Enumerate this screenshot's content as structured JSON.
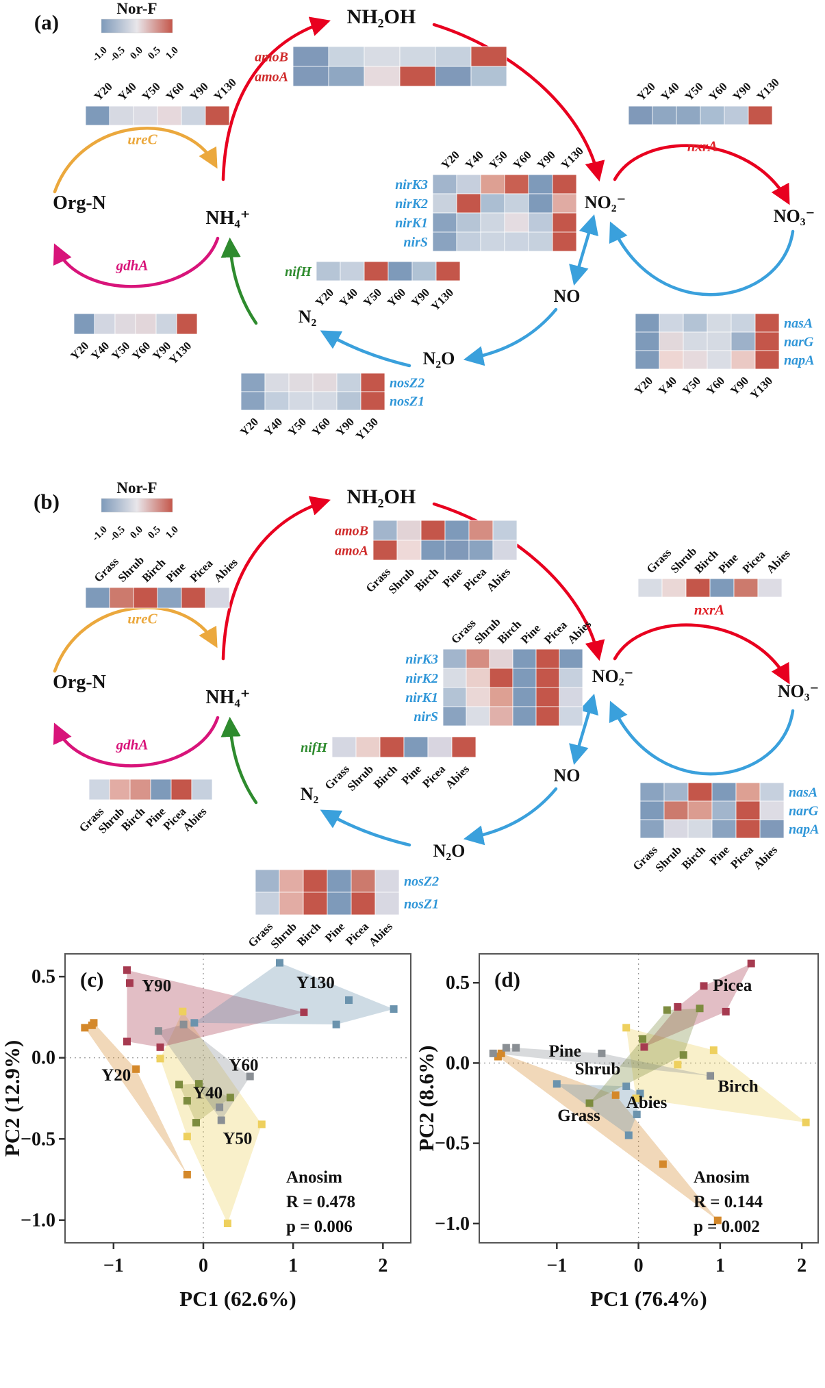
{
  "legend": {
    "title": "Nor-F",
    "ticks": [
      "-1.0",
      "-0.5",
      "0.0",
      "0.5",
      "1.0"
    ],
    "gradient": [
      "#7e9aba",
      "#e8e6ea",
      "#c4564a"
    ]
  },
  "panel_a": {
    "label": "(a)",
    "col_labels": [
      "Y20",
      "Y40",
      "Y50",
      "Y60",
      "Y90",
      "Y130"
    ],
    "nodes": {
      "nh2oh": "NH₂OH",
      "nh4": "NH₄⁺",
      "orgn": "Org-N",
      "no2": "NO₂⁻",
      "no3": "NO₃⁻",
      "no": "NO",
      "n2o": "N₂O",
      "n2": "N₂"
    },
    "genes": {
      "ureC": {
        "label": "ureC",
        "color": "#eba83d"
      },
      "gdhA": {
        "label": "gdhA",
        "color": "#d8147a"
      },
      "nxrA": {
        "label": "nxrA",
        "color": "#e01f26"
      }
    },
    "heatmaps": {
      "ureC": {
        "rows": [
          {
            "label": "",
            "colors": [
              "#7e9aba",
              "#d6d9e2",
              "#dcdce4",
              "#e6d8dc",
              "#ccd4e0",
              "#c4564a"
            ]
          }
        ]
      },
      "amo": {
        "label_color": "#cf2b2b",
        "rows": [
          {
            "label": "amoB",
            "colors": [
              "#8099b9",
              "#c9d4e0",
              "#d8dce4",
              "#d0d8e2",
              "#c6d1de",
              "#c4564a"
            ]
          },
          {
            "label": "amoA",
            "colors": [
              "#8099b9",
              "#8fa7c2",
              "#e6dadd",
              "#c4564a",
              "#8099b9",
              "#b0c2d4"
            ]
          }
        ]
      },
      "nxrA": {
        "rows": [
          {
            "label": "",
            "colors": [
              "#8099b9",
              "#8fa7c2",
              "#8fa7c2",
              "#a9bdd2",
              "#bcc9da",
              "#c4564a"
            ]
          }
        ]
      },
      "nir": {
        "label_color": "#2f96d8",
        "rows": [
          {
            "label": "nirK3",
            "colors": [
              "#a2b5cc",
              "#c6cfdd",
              "#dda093",
              "#c96052",
              "#7e9aba",
              "#c4564a"
            ]
          },
          {
            "label": "nirK2",
            "colors": [
              "#c9d2de",
              "#c4564a",
              "#abbed2",
              "#c6d1de",
              "#7e9aba",
              "#e0aba3"
            ]
          },
          {
            "label": "nirK1",
            "colors": [
              "#8aa3c0",
              "#b6c5d6",
              "#ced6e1",
              "#e4dce1",
              "#bcc9da",
              "#c4564a"
            ]
          },
          {
            "label": "nirS",
            "colors": [
              "#8aa3c0",
              "#c2cedd",
              "#ccd5e1",
              "#cbd4e1",
              "#c6d1de",
              "#c4564a"
            ]
          }
        ]
      },
      "nifH": {
        "label_color": "#2e8b2e",
        "rows": [
          {
            "label": "nifH",
            "colors": [
              "#b6c5d6",
              "#c6d0de",
              "#c4564a",
              "#7e9aba",
              "#b0c2d4",
              "#c4564a"
            ]
          }
        ]
      },
      "gdhA": {
        "rows": [
          {
            "label": "",
            "colors": [
              "#7e9aba",
              "#d2d6e1",
              "#dfd9df",
              "#e2d6da",
              "#ccd4e0",
              "#c4564a"
            ]
          }
        ]
      },
      "nos": {
        "label_color": "#2f96d8",
        "rows": [
          {
            "label": "nosZ2",
            "colors": [
              "#8aa3c0",
              "#d9dbe3",
              "#e0dbe0",
              "#e2d9dd",
              "#c6d1de",
              "#c4564a"
            ]
          },
          {
            "label": "nosZ1",
            "colors": [
              "#8aa3c0",
              "#c2cedd",
              "#d3d9e3",
              "#d3d9e3",
              "#b6c5d6",
              "#c4564a"
            ]
          }
        ]
      },
      "nas": {
        "label_color": "#2f96d8",
        "rows": [
          {
            "label": "nasA",
            "colors": [
              "#7e9aba",
              "#ced6e2",
              "#b3c3d5",
              "#d4dae3",
              "#c9d3e0",
              "#c4564a"
            ]
          },
          {
            "label": "narG",
            "colors": [
              "#7e9aba",
              "#e2d8db",
              "#d5dae3",
              "#d5dae3",
              "#9db1c9",
              "#c4564a"
            ]
          },
          {
            "label": "napA",
            "colors": [
              "#7e9aba",
              "#eed6d3",
              "#e6dadd",
              "#dadde5",
              "#eac9c4",
              "#c4564a"
            ]
          }
        ]
      }
    }
  },
  "panel_b": {
    "label": "(b)",
    "col_labels": [
      "Grass",
      "Shrub",
      "Birch",
      "Pine",
      "Picea",
      "Abies"
    ],
    "nodes": {
      "nh2oh": "NH₂OH",
      "nh4": "NH₄⁺",
      "orgn": "Org-N",
      "no2": "NO₂⁻",
      "no3": "NO₃⁻",
      "no": "NO",
      "n2o": "N₂O",
      "n2": "N₂"
    },
    "genes": {
      "ureC": {
        "label": "ureC",
        "color": "#eba83d"
      },
      "gdhA": {
        "label": "gdhA",
        "color": "#d8147a"
      },
      "nxrA": {
        "label": "nxrA",
        "color": "#e01f26"
      }
    },
    "heatmaps": {
      "ureC": {
        "rows": [
          {
            "label": "",
            "colors": [
              "#7e9aba",
              "#cc7a6d",
              "#c4564a",
              "#8aa3c0",
              "#c4564a",
              "#d5d7e2"
            ]
          }
        ]
      },
      "amo": {
        "label_color": "#cf2b2b",
        "rows": [
          {
            "label": "amoB",
            "colors": [
              "#a2b5cc",
              "#e2d3d6",
              "#c4564a",
              "#7e9aba",
              "#d58d82",
              "#c2cedd"
            ]
          },
          {
            "label": "amoA",
            "colors": [
              "#c4564a",
              "#eed9d8",
              "#7e9aba",
              "#8099b9",
              "#8aa3c0",
              "#d5d7e2"
            ]
          }
        ]
      },
      "nxrA": {
        "rows": [
          {
            "label": "",
            "colors": [
              "#d8dce4",
              "#ead7d6",
              "#c4564a",
              "#7e9aba",
              "#cc7a6d",
              "#dddce4"
            ]
          }
        ]
      },
      "nir": {
        "label_color": "#2f96d8",
        "rows": [
          {
            "label": "nirK3",
            "colors": [
              "#a2b5cc",
              "#d58d82",
              "#e2d3d6",
              "#7e9aba",
              "#c4564a",
              "#7e9aba"
            ]
          },
          {
            "label": "nirK2",
            "colors": [
              "#d8dce4",
              "#eacfcb",
              "#c4564a",
              "#7e9aba",
              "#c4564a",
              "#c6d0de"
            ]
          },
          {
            "label": "nirK1",
            "colors": [
              "#b3c3d5",
              "#ead7d6",
              "#dda093",
              "#7e9aba",
              "#c4564a",
              "#d5d7e2"
            ]
          },
          {
            "label": "nirS",
            "colors": [
              "#8aa3c0",
              "#dadde5",
              "#e0b0aa",
              "#7e9aba",
              "#c4564a",
              "#ced6e2"
            ]
          }
        ]
      },
      "nifH": {
        "label_color": "#2e8b2e",
        "rows": [
          {
            "label": "nifH",
            "colors": [
              "#d5d7e2",
              "#eacfcb",
              "#c4564a",
              "#7e9aba",
              "#d8d5e0",
              "#c4564a"
            ]
          }
        ]
      },
      "gdhA": {
        "rows": [
          {
            "label": "",
            "colors": [
              "#ced6e2",
              "#e2aca4",
              "#d8948a",
              "#7e9aba",
              "#c4564a",
              "#c6d0de"
            ]
          }
        ]
      },
      "nos": {
        "label_color": "#2f96d8",
        "rows": [
          {
            "label": "nosZ2",
            "colors": [
              "#a2b5cc",
              "#e2aca4",
              "#c4564a",
              "#7e9aba",
              "#cc7a6d",
              "#d8d8e2"
            ]
          },
          {
            "label": "nosZ1",
            "colors": [
              "#c6d0de",
              "#e2aca4",
              "#c4564a",
              "#7e9aba",
              "#c4564a",
              "#d8d8e2"
            ]
          }
        ]
      },
      "nas": {
        "label_color": "#2f96d8",
        "rows": [
          {
            "label": "nasA",
            "colors": [
              "#8aa3c0",
              "#a2b5cc",
              "#c4564a",
              "#7e9aba",
              "#dda093",
              "#c6d0de"
            ]
          },
          {
            "label": "narG",
            "colors": [
              "#7e9aba",
              "#cc7a6d",
              "#db9c90",
              "#a2b5cc",
              "#c4564a",
              "#dddce4"
            ]
          },
          {
            "label": "napA",
            "colors": [
              "#8aa3c0",
              "#d8d8e2",
              "#d5dae3",
              "#8aa3c0",
              "#c4564a",
              "#8099b9"
            ]
          }
        ]
      }
    }
  },
  "chart_data": [
    {
      "type": "scatter",
      "panel": "c",
      "label": "(c)",
      "xlabel": "PC1 (62.6%)",
      "ylabel": "PC2 (12.9%)",
      "xlim": [
        -1.54,
        2.31
      ],
      "ylim": [
        -1.14,
        0.64
      ],
      "xticks": [
        [
          -1,
          "−1"
        ],
        [
          0,
          "0"
        ],
        [
          1,
          "1"
        ],
        [
          2,
          "2"
        ]
      ],
      "yticks": [
        [
          0.5,
          "0.5"
        ],
        [
          0,
          "0.0"
        ],
        [
          -0.5,
          "−0.5"
        ],
        [
          -1,
          "−1.0"
        ]
      ],
      "grid_zero_lines": true,
      "legend_position": "inline-labels",
      "anosim": [
        "Anosim",
        "R = 0.478",
        "p = 0.006"
      ],
      "series": [
        {
          "name": "Y20",
          "color": "#d4882a",
          "label_pos": [
            -0.97,
            -0.14
          ],
          "points": [
            [
              -1.32,
              0.185
            ],
            [
              -1.24,
              0.2
            ],
            [
              -1.22,
              0.215
            ],
            [
              -0.75,
              -0.07
            ],
            [
              -0.18,
              -0.72
            ]
          ]
        },
        {
          "name": "Y40",
          "color": "#7d8c3f",
          "label_pos": [
            0.05,
            -0.25
          ],
          "points": [
            [
              -0.27,
              -0.165
            ],
            [
              -0.05,
              -0.16
            ],
            [
              0.3,
              -0.245
            ],
            [
              -0.18,
              -0.265
            ],
            [
              -0.08,
              -0.4
            ]
          ]
        },
        {
          "name": "Y50",
          "color": "#eed05e",
          "label_pos": [
            0.38,
            -0.53
          ],
          "points": [
            [
              -0.23,
              0.285
            ],
            [
              -0.48,
              -0.005
            ],
            [
              0.65,
              -0.41
            ],
            [
              -0.18,
              -0.485
            ],
            [
              0.27,
              -1.02
            ]
          ]
        },
        {
          "name": "Y60",
          "color": "#8a8f94",
          "label_pos": [
            0.45,
            -0.08
          ],
          "points": [
            [
              -0.5,
              0.165
            ],
            [
              -0.22,
              0.205
            ],
            [
              0.52,
              -0.115
            ],
            [
              0.18,
              -0.305
            ],
            [
              0.2,
              -0.385
            ]
          ]
        },
        {
          "name": "Y90",
          "color": "#a63a50",
          "label_pos": [
            -0.52,
            0.41
          ],
          "points": [
            [
              -0.85,
              0.54
            ],
            [
              -0.82,
              0.46
            ],
            [
              1.12,
              0.28
            ],
            [
              -0.85,
              0.1
            ],
            [
              -0.48,
              0.065
            ]
          ]
        },
        {
          "name": "Y130",
          "color": "#6b93ad",
          "label_pos": [
            1.25,
            0.43
          ],
          "points": [
            [
              0.85,
              0.585
            ],
            [
              1.62,
              0.355
            ],
            [
              2.12,
              0.3
            ],
            [
              1.48,
              0.205
            ],
            [
              -0.1,
              0.215
            ]
          ]
        }
      ]
    },
    {
      "type": "scatter",
      "panel": "d",
      "label": "(d)",
      "xlabel": "PC1 (76.4%)",
      "ylabel": "PC2 (8.6%)",
      "xlim": [
        -1.95,
        2.2
      ],
      "ylim": [
        -1.12,
        0.68
      ],
      "xticks": [
        [
          -1,
          "−1"
        ],
        [
          0,
          "0"
        ],
        [
          1,
          "1"
        ],
        [
          2,
          "2"
        ]
      ],
      "yticks": [
        [
          0.5,
          "0.5"
        ],
        [
          0,
          "0.0"
        ],
        [
          -0.5,
          "−0.5"
        ],
        [
          -1,
          "−1.0"
        ]
      ],
      "grid_zero_lines": true,
      "legend_position": "inline-labels",
      "anosim": [
        "Anosim",
        "R = 0.144",
        "p = 0.002"
      ],
      "series": [
        {
          "name": "Grass",
          "color": "#d4882a",
          "label_pos": [
            -0.73,
            -0.36
          ],
          "points": [
            [
              -1.72,
              0.04
            ],
            [
              -1.68,
              0.06
            ],
            [
              -0.28,
              -0.2
            ],
            [
              0.3,
              -0.63
            ],
            [
              0.97,
              -0.98
            ]
          ]
        },
        {
          "name": "Shrub",
          "color": "#6b93ad",
          "label_pos": [
            -0.5,
            -0.07
          ],
          "points": [
            [
              -1.0,
              -0.13
            ],
            [
              -0.15,
              -0.145
            ],
            [
              0.02,
              -0.19
            ],
            [
              -0.02,
              -0.32
            ],
            [
              -0.12,
              -0.45
            ]
          ]
        },
        {
          "name": "Birch",
          "color": "#eed05e",
          "label_pos": [
            1.22,
            -0.18
          ],
          "points": [
            [
              -0.15,
              0.22
            ],
            [
              0.92,
              0.08
            ],
            [
              0.48,
              -0.01
            ],
            [
              -0.03,
              -0.22
            ],
            [
              2.05,
              -0.37
            ]
          ]
        },
        {
          "name": "Pine",
          "color": "#8a8f94",
          "label_pos": [
            -0.9,
            0.04
          ],
          "points": [
            [
              -1.78,
              0.06
            ],
            [
              -1.62,
              0.095
            ],
            [
              -1.5,
              0.095
            ],
            [
              -0.45,
              0.06
            ],
            [
              0.88,
              -0.08
            ]
          ]
        },
        {
          "name": "Picea",
          "color": "#a63a50",
          "label_pos": [
            1.15,
            0.45
          ],
          "points": [
            [
              1.38,
              0.62
            ],
            [
              0.8,
              0.48
            ],
            [
              0.48,
              0.35
            ],
            [
              1.07,
              0.32
            ],
            [
              0.07,
              0.1
            ]
          ]
        },
        {
          "name": "Abies",
          "color": "#7d8c3f",
          "label_pos": [
            0.1,
            -0.28
          ],
          "points": [
            [
              0.35,
              0.33
            ],
            [
              0.75,
              0.34
            ],
            [
              0.05,
              0.15
            ],
            [
              0.55,
              0.05
            ],
            [
              -0.6,
              -0.25
            ]
          ]
        }
      ]
    }
  ]
}
